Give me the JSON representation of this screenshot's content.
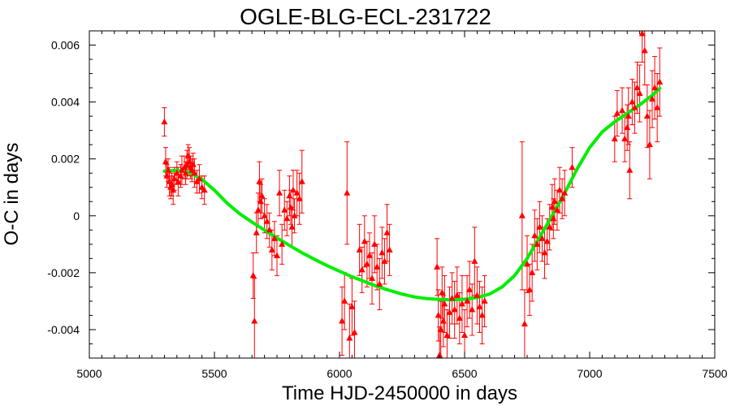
{
  "chart_data": {
    "type": "scatter",
    "title": "OGLE-BLG-ECL-231722",
    "xlabel": "Time HJD-2450000 in days",
    "ylabel": "O-C in days",
    "xlim": [
      5000,
      7500
    ],
    "ylim": [
      -0.005,
      0.0065
    ],
    "x_ticks": [
      5000,
      5500,
      6000,
      6500,
      7000,
      7500
    ],
    "x_tick_labels": [
      "5000",
      "5500",
      "6000",
      "6500",
      "7000",
      "7500"
    ],
    "y_ticks": [
      -0.004,
      -0.002,
      0,
      0.002,
      0.004,
      0.006
    ],
    "y_tick_labels": [
      "-0.004",
      "-0.002",
      "0",
      "0.002",
      "0.004",
      "0.006"
    ],
    "grid": false,
    "colors": {
      "points": "#ff0000",
      "fit": "#00ee00",
      "axes": "#000000"
    },
    "series": [
      {
        "type": "scatter_errorbars",
        "points": [
          {
            "x": 5300,
            "y": 0.0033,
            "err": 0.0005
          },
          {
            "x": 5305,
            "y": 0.0019,
            "err": 0.0005
          },
          {
            "x": 5310,
            "y": 0.0014,
            "err": 0.0004
          },
          {
            "x": 5315,
            "y": 0.0016,
            "err": 0.0004
          },
          {
            "x": 5320,
            "y": 0.0012,
            "err": 0.0005
          },
          {
            "x": 5325,
            "y": 0.001,
            "err": 0.0004
          },
          {
            "x": 5330,
            "y": 0.0011,
            "err": 0.0004
          },
          {
            "x": 5335,
            "y": 0.0009,
            "err": 0.0005
          },
          {
            "x": 5340,
            "y": 0.0013,
            "err": 0.0004
          },
          {
            "x": 5350,
            "y": 0.0015,
            "err": 0.0004
          },
          {
            "x": 5355,
            "y": 0.0012,
            "err": 0.0005
          },
          {
            "x": 5365,
            "y": 0.0014,
            "err": 0.0004
          },
          {
            "x": 5370,
            "y": 0.0016,
            "err": 0.0005
          },
          {
            "x": 5380,
            "y": 0.0017,
            "err": 0.0004
          },
          {
            "x": 5385,
            "y": 0.0015,
            "err": 0.0004
          },
          {
            "x": 5390,
            "y": 0.0018,
            "err": 0.0005
          },
          {
            "x": 5395,
            "y": 0.0021,
            "err": 0.0004
          },
          {
            "x": 5400,
            "y": 0.0019,
            "err": 0.0005
          },
          {
            "x": 5405,
            "y": 0.0017,
            "err": 0.0004
          },
          {
            "x": 5410,
            "y": 0.0016,
            "err": 0.0004
          },
          {
            "x": 5415,
            "y": 0.0018,
            "err": 0.0004
          },
          {
            "x": 5420,
            "y": 0.0015,
            "err": 0.0005
          },
          {
            "x": 5430,
            "y": 0.0012,
            "err": 0.0004
          },
          {
            "x": 5440,
            "y": 0.0013,
            "err": 0.0005
          },
          {
            "x": 5450,
            "y": 0.001,
            "err": 0.0004
          },
          {
            "x": 5460,
            "y": 0.0009,
            "err": 0.0005
          },
          {
            "x": 5655,
            "y": -0.0021,
            "err": 0.0008
          },
          {
            "x": 5660,
            "y": -0.0037,
            "err": 0.0015
          },
          {
            "x": 5668,
            "y": -0.0006,
            "err": 0.0007
          },
          {
            "x": 5675,
            "y": 0.0002,
            "err": 0.0006
          },
          {
            "x": 5680,
            "y": 0.0012,
            "err": 0.0007
          },
          {
            "x": 5685,
            "y": 0.0005,
            "err": 0.0006
          },
          {
            "x": 5690,
            "y": 0.0007,
            "err": 0.0006
          },
          {
            "x": 5700,
            "y": 0.0,
            "err": 0.0006
          },
          {
            "x": 5710,
            "y": -0.0002,
            "err": 0.0006
          },
          {
            "x": 5720,
            "y": -0.0005,
            "err": 0.0006
          },
          {
            "x": 5730,
            "y": -0.0012,
            "err": 0.0007
          },
          {
            "x": 5740,
            "y": -0.0008,
            "err": 0.0006
          },
          {
            "x": 5750,
            "y": -0.0014,
            "err": 0.0007
          },
          {
            "x": 5760,
            "y": 0.0008,
            "err": 0.0008
          },
          {
            "x": 5770,
            "y": -0.001,
            "err": 0.0007
          },
          {
            "x": 5780,
            "y": 0.0002,
            "err": 0.0007
          },
          {
            "x": 5790,
            "y": -0.0001,
            "err": 0.0006
          },
          {
            "x": 5800,
            "y": 0.0007,
            "err": 0.0007
          },
          {
            "x": 5805,
            "y": 0.0003,
            "err": 0.0006
          },
          {
            "x": 5810,
            "y": -0.0004,
            "err": 0.0007
          },
          {
            "x": 5815,
            "y": 0.0009,
            "err": 0.0007
          },
          {
            "x": 5820,
            "y": 0.0,
            "err": 0.0006
          },
          {
            "x": 5830,
            "y": 0.0008,
            "err": 0.0008
          },
          {
            "x": 5840,
            "y": 0.0006,
            "err": 0.0009
          },
          {
            "x": 5850,
            "y": 0.0012,
            "err": 0.0011
          },
          {
            "x": 6010,
            "y": -0.0037,
            "err": 0.0012
          },
          {
            "x": 6020,
            "y": -0.003,
            "err": 0.001
          },
          {
            "x": 6030,
            "y": 0.0008,
            "err": 0.0018
          },
          {
            "x": 6040,
            "y": -0.0043,
            "err": 0.0012
          },
          {
            "x": 6050,
            "y": -0.0032,
            "err": 0.001
          },
          {
            "x": 6060,
            "y": -0.0041,
            "err": 0.0011
          },
          {
            "x": 6080,
            "y": -0.0012,
            "err": 0.0009
          },
          {
            "x": 6090,
            "y": -0.0019,
            "err": 0.0008
          },
          {
            "x": 6100,
            "y": -0.0009,
            "err": 0.0009
          },
          {
            "x": 6110,
            "y": -0.0017,
            "err": 0.0008
          },
          {
            "x": 6120,
            "y": -0.0014,
            "err": 0.0008
          },
          {
            "x": 6130,
            "y": -0.0022,
            "err": 0.0009
          },
          {
            "x": 6140,
            "y": -0.001,
            "err": 0.001
          },
          {
            "x": 6150,
            "y": -0.0018,
            "err": 0.0008
          },
          {
            "x": 6160,
            "y": -0.0024,
            "err": 0.0009
          },
          {
            "x": 6170,
            "y": -0.0013,
            "err": 0.0009
          },
          {
            "x": 6180,
            "y": -0.0016,
            "err": 0.0008
          },
          {
            "x": 6190,
            "y": -0.0006,
            "err": 0.001
          },
          {
            "x": 6200,
            "y": -0.0012,
            "err": 0.0009
          },
          {
            "x": 6390,
            "y": -0.0018,
            "err": 0.001
          },
          {
            "x": 6395,
            "y": -0.0035,
            "err": 0.0009
          },
          {
            "x": 6400,
            "y": -0.0049,
            "err": 0.001
          },
          {
            "x": 6405,
            "y": -0.004,
            "err": 0.001
          },
          {
            "x": 6410,
            "y": -0.0027,
            "err": 0.0009
          },
          {
            "x": 6415,
            "y": -0.0037,
            "err": 0.0009
          },
          {
            "x": 6420,
            "y": -0.0031,
            "err": 0.001
          },
          {
            "x": 6430,
            "y": -0.0042,
            "err": 0.0009
          },
          {
            "x": 6440,
            "y": -0.0034,
            "err": 0.0009
          },
          {
            "x": 6450,
            "y": -0.0029,
            "err": 0.0009
          },
          {
            "x": 6460,
            "y": -0.0033,
            "err": 0.001
          },
          {
            "x": 6470,
            "y": -0.0028,
            "err": 0.001
          },
          {
            "x": 6480,
            "y": -0.0036,
            "err": 0.0009
          },
          {
            "x": 6490,
            "y": -0.0031,
            "err": 0.001
          },
          {
            "x": 6500,
            "y": -0.0042,
            "err": 0.0009
          },
          {
            "x": 6510,
            "y": -0.003,
            "err": 0.0009
          },
          {
            "x": 6520,
            "y": -0.0026,
            "err": 0.001
          },
          {
            "x": 6530,
            "y": -0.0033,
            "err": 0.0009
          },
          {
            "x": 6540,
            "y": -0.0016,
            "err": 0.0012
          },
          {
            "x": 6550,
            "y": -0.0028,
            "err": 0.001
          },
          {
            "x": 6560,
            "y": -0.0032,
            "err": 0.0009
          },
          {
            "x": 6570,
            "y": -0.0035,
            "err": 0.001
          },
          {
            "x": 6580,
            "y": -0.003,
            "err": 0.0009
          },
          {
            "x": 6730,
            "y": 0.0,
            "err": 0.0026
          },
          {
            "x": 6740,
            "y": -0.0038,
            "err": 0.0012
          },
          {
            "x": 6750,
            "y": -0.0017,
            "err": 0.001
          },
          {
            "x": 6760,
            "y": -0.0026,
            "err": 0.0009
          },
          {
            "x": 6770,
            "y": -0.002,
            "err": 0.001
          },
          {
            "x": 6780,
            "y": -0.0007,
            "err": 0.0009
          },
          {
            "x": 6790,
            "y": -0.001,
            "err": 0.0009
          },
          {
            "x": 6800,
            "y": -0.0004,
            "err": 0.0009
          },
          {
            "x": 6810,
            "y": -0.0008,
            "err": 0.0008
          },
          {
            "x": 6820,
            "y": -0.0013,
            "err": 0.0009
          },
          {
            "x": 6830,
            "y": -0.0009,
            "err": 0.0008
          },
          {
            "x": 6840,
            "y": -0.0004,
            "err": 0.0008
          },
          {
            "x": 6850,
            "y": 0.0003,
            "err": 0.0008
          },
          {
            "x": 6855,
            "y": -0.0001,
            "err": 0.0007
          },
          {
            "x": 6860,
            "y": 0.0005,
            "err": 0.0008
          },
          {
            "x": 6870,
            "y": 0.0002,
            "err": 0.0007
          },
          {
            "x": 6880,
            "y": 0.0009,
            "err": 0.0008
          },
          {
            "x": 6890,
            "y": 0.0006,
            "err": 0.0007
          },
          {
            "x": 6900,
            "y": 0.0008,
            "err": 0.0008
          },
          {
            "x": 6930,
            "y": 0.0017,
            "err": 0.0007
          },
          {
            "x": 7100,
            "y": 0.0027,
            "err": 0.0008
          },
          {
            "x": 7110,
            "y": 0.0036,
            "err": 0.0008
          },
          {
            "x": 7130,
            "y": 0.0037,
            "err": 0.0008
          },
          {
            "x": 7140,
            "y": 0.0027,
            "err": 0.0008
          },
          {
            "x": 7150,
            "y": 0.0031,
            "err": 0.0008
          },
          {
            "x": 7155,
            "y": 0.0035,
            "err": 0.001
          },
          {
            "x": 7160,
            "y": 0.0016,
            "err": 0.001
          },
          {
            "x": 7170,
            "y": 0.004,
            "err": 0.0008
          },
          {
            "x": 7180,
            "y": 0.0038,
            "err": 0.0009
          },
          {
            "x": 7190,
            "y": 0.0045,
            "err": 0.0009
          },
          {
            "x": 7200,
            "y": 0.0043,
            "err": 0.001
          },
          {
            "x": 7210,
            "y": 0.0064,
            "err": 0.001
          },
          {
            "x": 7220,
            "y": 0.0058,
            "err": 0.0012
          },
          {
            "x": 7230,
            "y": 0.0035,
            "err": 0.0011
          },
          {
            "x": 7240,
            "y": 0.0025,
            "err": 0.0012
          },
          {
            "x": 7250,
            "y": 0.0041,
            "err": 0.001
          },
          {
            "x": 7260,
            "y": 0.0045,
            "err": 0.0011
          },
          {
            "x": 7270,
            "y": 0.0038,
            "err": 0.0012
          },
          {
            "x": 7280,
            "y": 0.0047,
            "err": 0.0012
          }
        ]
      },
      {
        "type": "line",
        "points": [
          {
            "x": 5300,
            "y": 0.00157
          },
          {
            "x": 5350,
            "y": 0.0016
          },
          {
            "x": 5400,
            "y": 0.00152
          },
          {
            "x": 5450,
            "y": 0.00128
          },
          {
            "x": 5500,
            "y": 0.0009
          },
          {
            "x": 5550,
            "y": 0.00045
          },
          {
            "x": 5600,
            "y": 8e-05
          },
          {
            "x": 5650,
            "y": -0.00022
          },
          {
            "x": 5700,
            "y": -0.0005
          },
          {
            "x": 5750,
            "y": -0.00078
          },
          {
            "x": 5800,
            "y": -0.00104
          },
          {
            "x": 5850,
            "y": -0.0013
          },
          {
            "x": 5900,
            "y": -0.00153
          },
          {
            "x": 5950,
            "y": -0.00175
          },
          {
            "x": 6000,
            "y": -0.00195
          },
          {
            "x": 6050,
            "y": -0.00214
          },
          {
            "x": 6100,
            "y": -0.00231
          },
          {
            "x": 6150,
            "y": -0.00248
          },
          {
            "x": 6200,
            "y": -0.00262
          },
          {
            "x": 6250,
            "y": -0.00275
          },
          {
            "x": 6300,
            "y": -0.00285
          },
          {
            "x": 6350,
            "y": -0.00291
          },
          {
            "x": 6400,
            "y": -0.00294
          },
          {
            "x": 6450,
            "y": -0.00295
          },
          {
            "x": 6500,
            "y": -0.00293
          },
          {
            "x": 6550,
            "y": -0.00287
          },
          {
            "x": 6600,
            "y": -0.00275
          },
          {
            "x": 6650,
            "y": -0.0025
          },
          {
            "x": 6700,
            "y": -0.0021
          },
          {
            "x": 6750,
            "y": -0.0015
          },
          {
            "x": 6800,
            "y": -0.00075
          },
          {
            "x": 6850,
            "y": 0.0
          },
          {
            "x": 6900,
            "y": 0.0008
          },
          {
            "x": 6950,
            "y": 0.00165
          },
          {
            "x": 7000,
            "y": 0.0024
          },
          {
            "x": 7050,
            "y": 0.00295
          },
          {
            "x": 7100,
            "y": 0.0033
          },
          {
            "x": 7150,
            "y": 0.0036
          },
          {
            "x": 7200,
            "y": 0.0039
          },
          {
            "x": 7250,
            "y": 0.00423
          },
          {
            "x": 7280,
            "y": 0.00448
          }
        ]
      }
    ]
  }
}
